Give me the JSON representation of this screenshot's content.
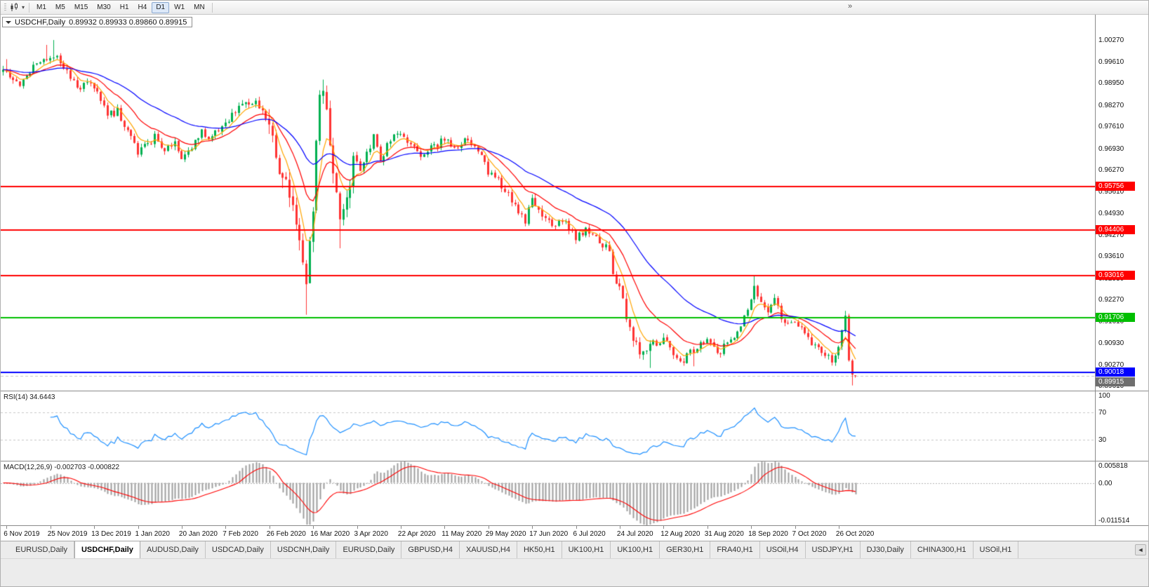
{
  "toolbar": {
    "timeframes": [
      "M1",
      "M5",
      "M15",
      "M30",
      "H1",
      "H4",
      "D1",
      "W1",
      "MN"
    ],
    "active_timeframe": "D1",
    "overflow_label": "»"
  },
  "chart": {
    "title": "USDCHF,Daily",
    "ohlc_text": "0.89932 0.89933 0.89860 0.89915"
  },
  "chart_data": {
    "type": "candlestick",
    "symbol": "USDCHF",
    "timeframe": "Daily",
    "bar_count": 254,
    "seed": 20201109,
    "volatility": 0.0013,
    "price_max": 1.0105,
    "price_min": 0.8946,
    "y_ticks": [
      "1.00270",
      "0.99610",
      "0.98950",
      "0.98270",
      "0.97610",
      "0.96930",
      "0.96270",
      "0.95610",
      "0.94930",
      "0.94270",
      "0.93610",
      "0.92930",
      "0.92270",
      "0.91610",
      "0.90930",
      "0.90270",
      "0.89610"
    ],
    "x_labels": [
      "6 Nov 2019",
      "25 Nov 2019",
      "13 Dec 2019",
      "1 Jan 2020",
      "20 Jan 2020",
      "7 Feb 2020",
      "26 Feb 2020",
      "16 Mar 2020",
      "3 Apr 2020",
      "22 Apr 2020",
      "11 May 2020",
      "29 May 2020",
      "17 Jun 2020",
      "6 Jul 2020",
      "24 Jul 2020",
      "12 Aug 2020",
      "31 Aug 2020",
      "18 Sep 2020",
      "7 Oct 2020",
      "26 Oct 2020"
    ],
    "x_label_first_bar": 1,
    "x_label_bar_step": 13,
    "hlines": [
      {
        "price": 0.95756,
        "color": "#ff0000",
        "label": "0.95756"
      },
      {
        "price": 0.94406,
        "color": "#ff0000",
        "label": "0.94406"
      },
      {
        "price": 0.93016,
        "color": "#ff0000",
        "label": "0.93016"
      },
      {
        "price": 0.91706,
        "color": "#00bf00",
        "label": "0.91706"
      },
      {
        "price": 0.90018,
        "color": "#0000ff",
        "label": "0.90018"
      }
    ],
    "bid_marker": {
      "price": 0.89915,
      "label": "0.89915",
      "color": "#6e6e6e"
    },
    "waypoints": [
      [
        0,
        0.993
      ],
      [
        3,
        0.9905
      ],
      [
        5,
        0.989
      ],
      [
        9,
        0.9945
      ],
      [
        12,
        0.9965
      ],
      [
        14,
        0.998
      ],
      [
        16,
        0.999
      ],
      [
        18,
        0.994
      ],
      [
        20,
        0.9915
      ],
      [
        22,
        0.9875
      ],
      [
        25,
        0.9895
      ],
      [
        28,
        0.986
      ],
      [
        31,
        0.9795
      ],
      [
        34,
        0.9805
      ],
      [
        37,
        0.9745
      ],
      [
        40,
        0.9685
      ],
      [
        42,
        0.9705
      ],
      [
        45,
        0.9725
      ],
      [
        48,
        0.969
      ],
      [
        51,
        0.9712
      ],
      [
        53,
        0.9672
      ],
      [
        56,
        0.969
      ],
      [
        59,
        0.9745
      ],
      [
        62,
        0.9728
      ],
      [
        66,
        0.9778
      ],
      [
        70,
        0.9812
      ],
      [
        74,
        0.9842
      ],
      [
        77,
        0.9802
      ],
      [
        79,
        0.9755
      ],
      [
        82,
        0.9645
      ],
      [
        85,
        0.956
      ],
      [
        88,
        0.943
      ],
      [
        90,
        0.929
      ],
      [
        91,
        0.938
      ],
      [
        92,
        0.952
      ],
      [
        93,
        0.97
      ],
      [
        94,
        0.986
      ],
      [
        95,
        0.9888
      ],
      [
        96,
        0.98
      ],
      [
        97,
        0.9732
      ],
      [
        98,
        0.9645
      ],
      [
        100,
        0.9465
      ],
      [
        102,
        0.956
      ],
      [
        104,
        0.965
      ],
      [
        106,
        0.9622
      ],
      [
        108,
        0.968
      ],
      [
        110,
        0.9728
      ],
      [
        112,
        0.9662
      ],
      [
        115,
        0.9716
      ],
      [
        118,
        0.974
      ],
      [
        121,
        0.9702
      ],
      [
        124,
        0.9666
      ],
      [
        127,
        0.9692
      ],
      [
        131,
        0.9722
      ],
      [
        134,
        0.9692
      ],
      [
        137,
        0.9716
      ],
      [
        140,
        0.97
      ],
      [
        144,
        0.9622
      ],
      [
        148,
        0.9582
      ],
      [
        152,
        0.9512
      ],
      [
        155,
        0.9472
      ],
      [
        157,
        0.9532
      ],
      [
        160,
        0.9482
      ],
      [
        163,
        0.9452
      ],
      [
        166,
        0.9472
      ],
      [
        170,
        0.9415
      ],
      [
        173,
        0.9442
      ],
      [
        176,
        0.9412
      ],
      [
        179,
        0.9392
      ],
      [
        183,
        0.9252
      ],
      [
        186,
        0.9132
      ],
      [
        189,
        0.9072
      ],
      [
        192,
        0.9092
      ],
      [
        196,
        0.9115
      ],
      [
        199,
        0.9062
      ],
      [
        202,
        0.9042
      ],
      [
        205,
        0.9072
      ],
      [
        209,
        0.9095
      ],
      [
        212,
        0.9062
      ],
      [
        215,
        0.9092
      ],
      [
        218,
        0.9132
      ],
      [
        221,
        0.92
      ],
      [
        223,
        0.9272
      ],
      [
        225,
        0.9225
      ],
      [
        227,
        0.9185
      ],
      [
        229,
        0.922
      ],
      [
        232,
        0.915
      ],
      [
        235,
        0.9165
      ],
      [
        238,
        0.912
      ],
      [
        241,
        0.9085
      ],
      [
        244,
        0.9055
      ],
      [
        246,
        0.9045
      ],
      [
        248,
        0.9075
      ],
      [
        250,
        0.9165
      ],
      [
        251,
        0.905
      ],
      [
        252,
        0.8995
      ],
      [
        253,
        0.89915
      ]
    ],
    "spikes": [
      {
        "bar": 1,
        "high": 0.9968
      },
      {
        "bar": 13,
        "high": 1.0012
      },
      {
        "bar": 15,
        "high": 1.0027
      },
      {
        "bar": 90,
        "low": 0.918
      },
      {
        "bar": 95,
        "high": 0.9905
      },
      {
        "bar": 100,
        "low": 0.9385
      },
      {
        "bar": 192,
        "low": 0.9016
      },
      {
        "bar": 205,
        "low": 0.9021
      },
      {
        "bar": 223,
        "high": 0.9301
      },
      {
        "bar": 250,
        "high": 0.9192
      },
      {
        "bar": 252,
        "low": 0.8962
      }
    ],
    "last_bar": [
      0.89932,
      0.89933,
      0.8986,
      0.89915
    ],
    "colors": {
      "up": "#00b050",
      "down": "#ff3333",
      "ma_fast": "#ffa500",
      "ma_mid": "#ff0000",
      "ma_slow": "#0000ff",
      "rsi": "#1e90ff",
      "macd_hist": "#9e9e9e",
      "macd_signal": "#ff0000"
    },
    "moving_averages": [
      {
        "period": 6,
        "color_key": "ma_fast"
      },
      {
        "period": 16,
        "color_key": "ma_mid"
      },
      {
        "period": 40,
        "color_key": "ma_slow"
      }
    ]
  },
  "rsi_panel": {
    "label": "RSI(14)",
    "value": "34.6443",
    "scale_labels": [
      "100",
      "70",
      "30"
    ],
    "levels": [
      70,
      30
    ],
    "range": [
      0,
      100
    ]
  },
  "macd_panel": {
    "label": "MACD(12,26,9)",
    "values": "-0.002703 -0.000822",
    "scale_top": "0.005818",
    "scale_zero": "0.00",
    "scale_bottom": "-0.011514",
    "range": [
      -0.011514,
      0.005818
    ],
    "params": [
      12,
      26,
      9
    ]
  },
  "tabs": {
    "items": [
      "EURUSD,Daily",
      "USDCHF,Daily",
      "AUDUSD,Daily",
      "USDCAD,Daily",
      "USDCNH,Daily",
      "EURUSD,Daily",
      "GBPUSD,H4",
      "XAUUSD,H4",
      "HK50,H1",
      "UK100,H1",
      "UK100,H1",
      "GER30,H1",
      "FRA40,H1",
      "USOil,H4",
      "USDJPY,H1",
      "DJ30,Daily",
      "CHINA300,H1",
      "USOil,H1"
    ],
    "active_index": 1,
    "scroll_left": "◄"
  }
}
